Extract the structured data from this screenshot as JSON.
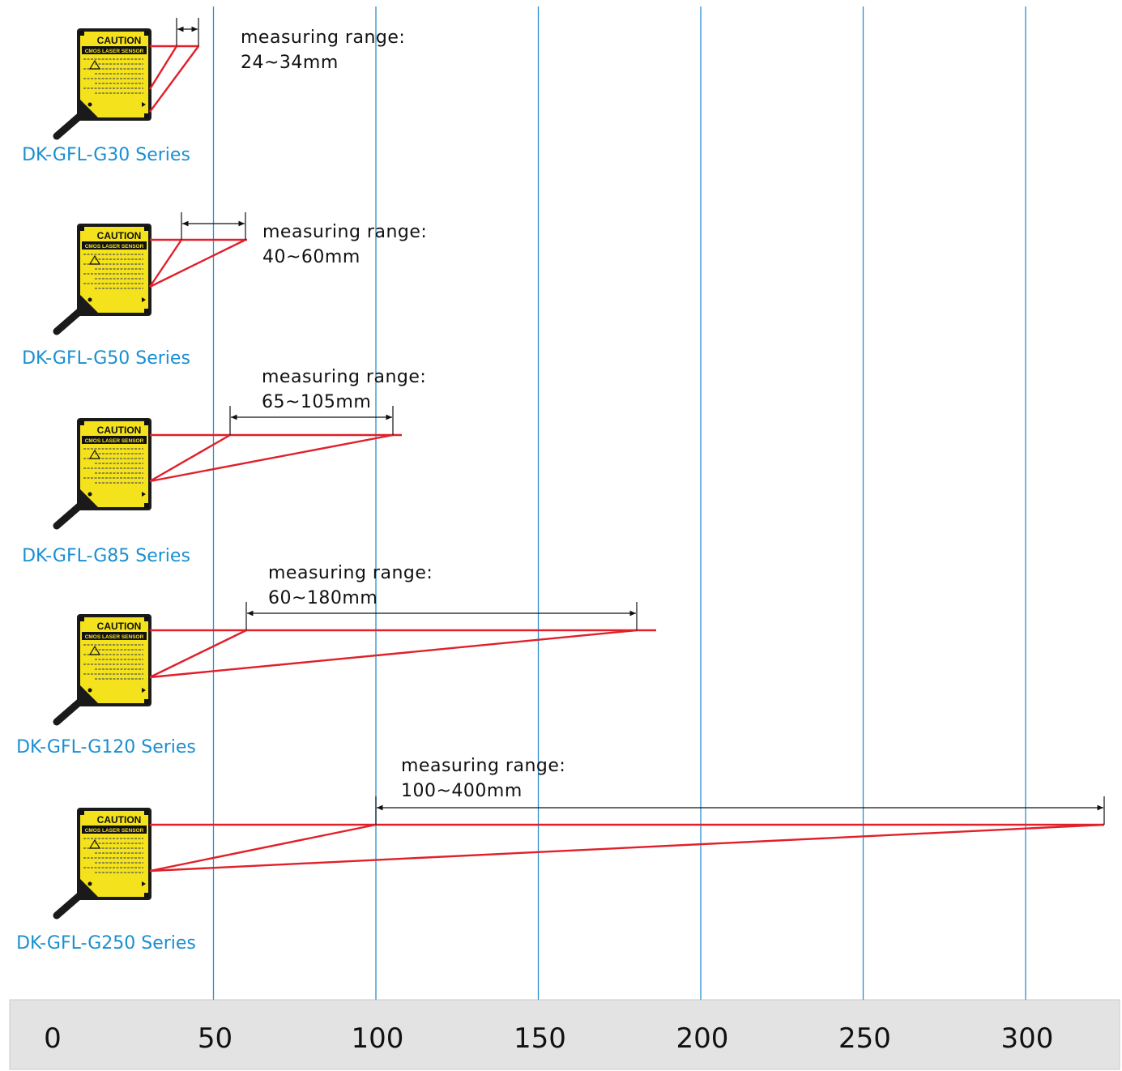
{
  "colors": {
    "gridline": "#2a8fcf",
    "laser": "#e0202a",
    "sensor_body": "#f4e21c",
    "sensor_edge": "#1a1a1a",
    "series_label": "#1a8fd0",
    "axis_band": "#e3e3e3"
  },
  "axis": {
    "ticks": [
      "0",
      "50",
      "100",
      "150",
      "200",
      "250",
      "300"
    ],
    "tick_values": [
      0,
      50,
      100,
      150,
      200,
      250,
      300
    ]
  },
  "sensor_badge": {
    "title": "CAUTION",
    "subtitle": "CMOS LASER SENSOR"
  },
  "sensors": [
    {
      "series": "DK-GFL-G30 Series",
      "range_label": "measuring range:",
      "range_value": "24~34mm",
      "near_mm": 24,
      "far_mm": 34
    },
    {
      "series": "DK-GFL-G50 Series",
      "range_label": "measuring range:",
      "range_value": "40~60mm",
      "near_mm": 40,
      "far_mm": 60
    },
    {
      "series": "DK-GFL-G85 Series",
      "range_label": "measuring range:",
      "range_value": "65~105mm",
      "near_mm": 65,
      "far_mm": 105
    },
    {
      "series": "DK-GFL-G120 Series",
      "range_label": "measuring range:",
      "range_value": "60~180mm",
      "near_mm": 60,
      "far_mm": 180
    },
    {
      "series": "DK-GFL-G250 Series",
      "range_label": "measuring range:",
      "range_value": "100~400mm",
      "near_mm": 100,
      "far_mm": 400
    }
  ]
}
